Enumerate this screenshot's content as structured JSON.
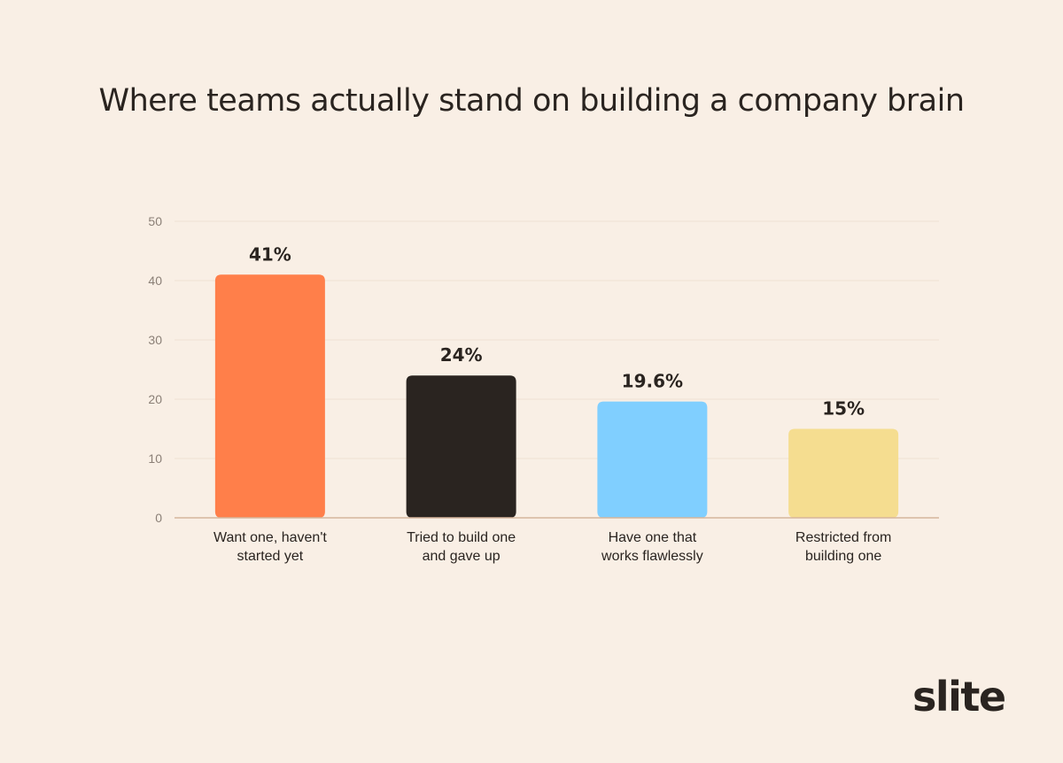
{
  "chart_data": {
    "type": "bar",
    "title": "Where teams actually stand on building a company brain",
    "categories": [
      [
        "Want one, haven't",
        "started yet"
      ],
      [
        "Tried to build one",
        "and gave up"
      ],
      [
        "Have one that",
        "works flawlessly"
      ],
      [
        "Restricted from",
        "building one"
      ]
    ],
    "values": [
      41,
      24,
      19.6,
      15
    ],
    "value_labels": [
      "41%",
      "24%",
      "19.6%",
      "15%"
    ],
    "colors": [
      "#ff7f4a",
      "#2a2420",
      "#80cfff",
      "#f5dd90"
    ],
    "yticks": [
      0,
      10,
      20,
      30,
      40,
      50
    ],
    "ylim": [
      0,
      50
    ],
    "grid": true,
    "xlabel": "",
    "ylabel": ""
  },
  "brand": {
    "logo_text": "slite"
  }
}
